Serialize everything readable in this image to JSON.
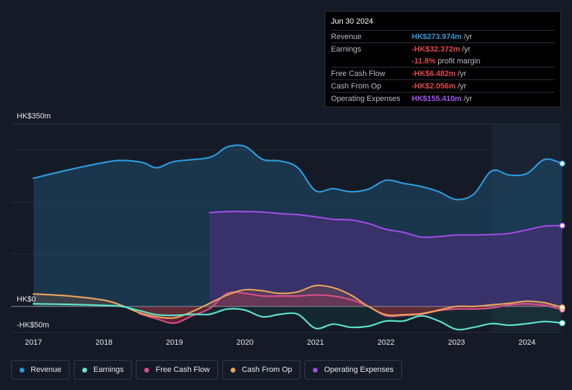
{
  "tooltip": {
    "date": "Jun 30 2024",
    "rows": [
      {
        "label": "Revenue",
        "value": "HK$273.974m",
        "unit": "/yr",
        "color": "#2d9cdb"
      },
      {
        "label": "Earnings",
        "value": "-HK$32.372m",
        "unit": "/yr",
        "color": "#e5484d"
      },
      {
        "label": "",
        "value": "-11.8%",
        "unit": "profit margin",
        "color": "#e5484d"
      },
      {
        "label": "Free Cash Flow",
        "value": "-HK$6.482m",
        "unit": "/yr",
        "color": "#e5484d"
      },
      {
        "label": "Cash From Op",
        "value": "-HK$2.056m",
        "unit": "/yr",
        "color": "#e5484d"
      },
      {
        "label": "Operating Expenses",
        "value": "HK$155.410m",
        "unit": "/yr",
        "color": "#a855f7"
      }
    ]
  },
  "legend": [
    {
      "label": "Revenue",
      "color": "#2d9cdb"
    },
    {
      "label": "Earnings",
      "color": "#5ee6d0"
    },
    {
      "label": "Free Cash Flow",
      "color": "#d64f8a"
    },
    {
      "label": "Cash From Op",
      "color": "#e8a35f"
    },
    {
      "label": "Operating Expenses",
      "color": "#9b4de0"
    }
  ],
  "chart_data": {
    "type": "area",
    "title": "",
    "y_axis_labels": [
      "HK$350m",
      "HK$0",
      "-HK$50m"
    ],
    "x_tick_labels": [
      "2017",
      "2018",
      "2019",
      "2020",
      "2021",
      "2022",
      "2023",
      "2024"
    ],
    "ylim": [
      -50,
      350
    ],
    "xlim": [
      2016.7,
      2024.5
    ],
    "forecast_region_start": 2023.5,
    "series": [
      {
        "name": "Revenue",
        "color": "#2d9cdb",
        "points": [
          [
            2017.0,
            246
          ],
          [
            2017.5,
            262
          ],
          [
            2018.0,
            276
          ],
          [
            2018.25,
            280
          ],
          [
            2018.55,
            276
          ],
          [
            2018.75,
            266
          ],
          [
            2019.0,
            278
          ],
          [
            2019.5,
            286
          ],
          [
            2019.75,
            306
          ],
          [
            2020.0,
            307
          ],
          [
            2020.25,
            282
          ],
          [
            2020.5,
            279
          ],
          [
            2020.75,
            266
          ],
          [
            2021.0,
            222
          ],
          [
            2021.25,
            226
          ],
          [
            2021.5,
            220
          ],
          [
            2021.75,
            225
          ],
          [
            2022.0,
            242
          ],
          [
            2022.25,
            236
          ],
          [
            2022.5,
            230
          ],
          [
            2022.75,
            220
          ],
          [
            2023.0,
            205
          ],
          [
            2023.25,
            216
          ],
          [
            2023.5,
            260
          ],
          [
            2023.75,
            252
          ],
          [
            2024.0,
            255
          ],
          [
            2024.25,
            282
          ],
          [
            2024.5,
            274
          ]
        ]
      },
      {
        "name": "Earnings",
        "color": "#5ee6d0",
        "points": [
          [
            2017.0,
            5
          ],
          [
            2017.5,
            4
          ],
          [
            2018.0,
            2
          ],
          [
            2018.25,
            0
          ],
          [
            2018.5,
            -8
          ],
          [
            2018.75,
            -16
          ],
          [
            2019.0,
            -17
          ],
          [
            2019.25,
            -15
          ],
          [
            2019.5,
            -15
          ],
          [
            2019.75,
            -5
          ],
          [
            2020.0,
            -7
          ],
          [
            2020.25,
            -20
          ],
          [
            2020.5,
            -15
          ],
          [
            2020.75,
            -15
          ],
          [
            2021.0,
            -42
          ],
          [
            2021.25,
            -34
          ],
          [
            2021.5,
            -40
          ],
          [
            2021.75,
            -38
          ],
          [
            2022.0,
            -28
          ],
          [
            2022.25,
            -28
          ],
          [
            2022.5,
            -18
          ],
          [
            2022.75,
            -28
          ],
          [
            2023.0,
            -44
          ],
          [
            2023.25,
            -40
          ],
          [
            2023.5,
            -33
          ],
          [
            2023.75,
            -36
          ],
          [
            2024.0,
            -33
          ],
          [
            2024.25,
            -29
          ],
          [
            2024.5,
            -32
          ]
        ]
      },
      {
        "name": "Free Cash Flow",
        "color": "#d64f8a",
        "points": [
          [
            2018.5,
            -14
          ],
          [
            2018.75,
            -24
          ],
          [
            2019.0,
            -32
          ],
          [
            2019.25,
            -18
          ],
          [
            2019.5,
            -4
          ],
          [
            2019.75,
            25
          ],
          [
            2020.0,
            25
          ],
          [
            2020.25,
            20
          ],
          [
            2020.5,
            20
          ],
          [
            2020.75,
            20
          ],
          [
            2021.0,
            22
          ],
          [
            2021.25,
            20
          ],
          [
            2021.5,
            13
          ],
          [
            2021.75,
            0
          ],
          [
            2022.0,
            -18
          ],
          [
            2022.25,
            -17
          ],
          [
            2022.5,
            -15
          ],
          [
            2022.75,
            -8
          ],
          [
            2023.0,
            -5
          ],
          [
            2023.25,
            -5
          ],
          [
            2023.5,
            -3
          ],
          [
            2023.75,
            3
          ],
          [
            2024.0,
            5
          ],
          [
            2024.25,
            2
          ],
          [
            2024.5,
            -6
          ]
        ]
      },
      {
        "name": "Cash From Op",
        "color": "#e8a35f",
        "points": [
          [
            2017.0,
            24
          ],
          [
            2017.5,
            20
          ],
          [
            2018.0,
            12
          ],
          [
            2018.25,
            2
          ],
          [
            2018.5,
            -12
          ],
          [
            2018.75,
            -20
          ],
          [
            2019.0,
            -22
          ],
          [
            2019.25,
            -10
          ],
          [
            2019.5,
            6
          ],
          [
            2019.75,
            22
          ],
          [
            2020.0,
            32
          ],
          [
            2020.25,
            30
          ],
          [
            2020.5,
            25
          ],
          [
            2020.75,
            28
          ],
          [
            2021.0,
            40
          ],
          [
            2021.25,
            36
          ],
          [
            2021.5,
            22
          ],
          [
            2021.75,
            0
          ],
          [
            2022.0,
            -16
          ],
          [
            2022.25,
            -16
          ],
          [
            2022.5,
            -14
          ],
          [
            2022.75,
            -7
          ],
          [
            2023.0,
            0
          ],
          [
            2023.25,
            0
          ],
          [
            2023.5,
            3
          ],
          [
            2023.75,
            6
          ],
          [
            2024.0,
            10
          ],
          [
            2024.25,
            7
          ],
          [
            2024.5,
            -2
          ]
        ]
      },
      {
        "name": "Operating Expenses",
        "color": "#9b4de0",
        "points": [
          [
            2019.5,
            180
          ],
          [
            2019.75,
            182
          ],
          [
            2020.0,
            182
          ],
          [
            2020.25,
            181
          ],
          [
            2020.5,
            178
          ],
          [
            2020.75,
            176
          ],
          [
            2021.0,
            172
          ],
          [
            2021.25,
            167
          ],
          [
            2021.5,
            166
          ],
          [
            2021.75,
            159
          ],
          [
            2022.0,
            148
          ],
          [
            2022.25,
            142
          ],
          [
            2022.5,
            133
          ],
          [
            2022.75,
            134
          ],
          [
            2023.0,
            137
          ],
          [
            2023.25,
            137
          ],
          [
            2023.5,
            138
          ],
          [
            2023.75,
            140
          ],
          [
            2024.0,
            147
          ],
          [
            2024.25,
            154
          ],
          [
            2024.5,
            155
          ]
        ]
      }
    ]
  }
}
